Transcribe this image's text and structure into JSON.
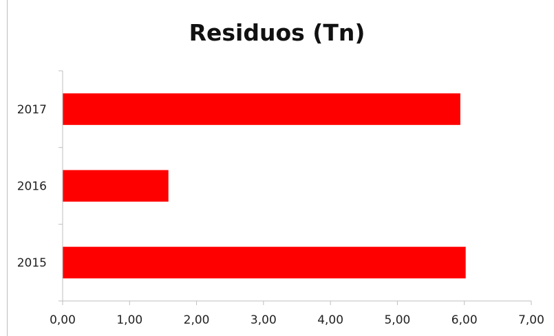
{
  "chart_data": {
    "type": "bar",
    "orientation": "horizontal",
    "title": "Residuos (Tn)",
    "categories": [
      "2015",
      "2016",
      "2017"
    ],
    "values": [
      6.02,
      1.58,
      5.94
    ],
    "x_ticks": [
      "0,00",
      "1,00",
      "2,00",
      "3,00",
      "4,00",
      "5,00",
      "6,00",
      "7,00"
    ],
    "xlim": [
      0,
      7
    ],
    "xlabel": "",
    "ylabel": "",
    "grid": false,
    "legend": "none",
    "bar_color": "#ff0000"
  }
}
